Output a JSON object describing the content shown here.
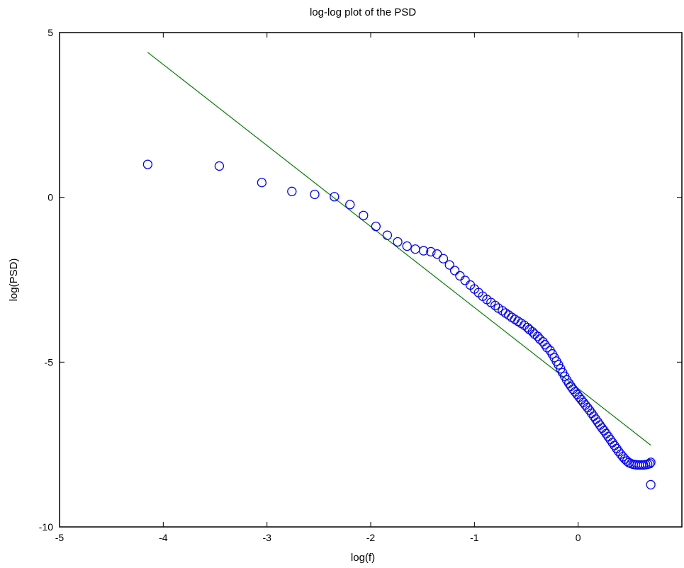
{
  "chart_data": {
    "type": "scatter",
    "title": "log-log plot of the PSD",
    "xlabel": "log(f)",
    "ylabel": "log(PSD)",
    "xlim": [
      -5,
      1
    ],
    "ylim": [
      -10,
      5
    ],
    "xticks": [
      -5,
      -4,
      -3,
      -2,
      -1,
      0
    ],
    "yticks": [
      -10,
      -5,
      0,
      5
    ],
    "xtick_labels": [
      "-5",
      "-4",
      "-3",
      "-2",
      "-1",
      "0"
    ],
    "ytick_labels": [
      "-10",
      "-5",
      "0",
      "5"
    ],
    "grid": false,
    "series": [
      {
        "marker": "circle-open",
        "color": "#0000ff",
        "x": [
          -4.15,
          -3.46,
          -3.05,
          -2.76,
          -2.54,
          -2.35,
          -2.2,
          -2.07,
          -1.95,
          -1.84,
          -1.74,
          -1.65,
          -1.57,
          -1.49,
          -1.42,
          -1.36,
          -1.3,
          -1.24,
          -1.19,
          -1.14,
          -1.09,
          -1.04,
          -1.0,
          -0.96,
          -0.92,
          -0.88,
          -0.84,
          -0.8,
          -0.77,
          -0.73,
          -0.7,
          -0.67,
          -0.64,
          -0.61,
          -0.58,
          -0.55,
          -0.52,
          -0.49,
          -0.47,
          -0.44,
          -0.42,
          -0.39,
          -0.37,
          -0.34,
          -0.32,
          -0.3,
          -0.27,
          -0.25,
          -0.23,
          -0.21,
          -0.19,
          -0.17,
          -0.15,
          -0.13,
          -0.11,
          -0.09,
          -0.07,
          -0.05,
          -0.03,
          -0.01,
          0.01,
          0.03,
          0.05,
          0.07,
          0.09,
          0.11,
          0.13,
          0.15,
          0.17,
          0.19,
          0.21,
          0.23,
          0.25,
          0.27,
          0.29,
          0.31,
          0.33,
          0.35,
          0.37,
          0.39,
          0.41,
          0.43,
          0.45,
          0.47,
          0.49,
          0.51,
          0.53,
          0.55,
          0.57,
          0.59,
          0.61,
          0.63,
          0.65,
          0.67,
          0.69,
          0.7,
          0.7
        ],
        "y": [
          1.0,
          0.95,
          0.45,
          0.18,
          0.09,
          0.02,
          -0.22,
          -0.55,
          -0.88,
          -1.15,
          -1.35,
          -1.48,
          -1.57,
          -1.62,
          -1.65,
          -1.72,
          -1.86,
          -2.05,
          -2.22,
          -2.38,
          -2.52,
          -2.66,
          -2.78,
          -2.89,
          -3.0,
          -3.1,
          -3.19,
          -3.28,
          -3.36,
          -3.44,
          -3.51,
          -3.57,
          -3.64,
          -3.7,
          -3.76,
          -3.82,
          -3.88,
          -3.95,
          -4.01,
          -4.08,
          -4.15,
          -4.22,
          -4.3,
          -4.38,
          -4.47,
          -4.56,
          -4.65,
          -4.75,
          -4.86,
          -4.97,
          -5.08,
          -5.2,
          -5.32,
          -5.43,
          -5.54,
          -5.64,
          -5.73,
          -5.82,
          -5.9,
          -5.98,
          -6.06,
          -6.14,
          -6.22,
          -6.3,
          -6.38,
          -6.46,
          -6.55,
          -6.64,
          -6.73,
          -6.82,
          -6.91,
          -7.0,
          -7.08,
          -7.17,
          -7.26,
          -7.35,
          -7.44,
          -7.53,
          -7.62,
          -7.71,
          -7.79,
          -7.87,
          -7.94,
          -8.0,
          -8.05,
          -8.08,
          -8.1,
          -8.11,
          -8.12,
          -8.12,
          -8.12,
          -8.12,
          -8.11,
          -8.1,
          -8.08,
          -8.04,
          -8.72
        ]
      },
      {
        "line": "solid",
        "color": "#008000",
        "x": [
          -4.15,
          0.7
        ],
        "y": [
          4.4,
          -7.52
        ]
      }
    ]
  }
}
